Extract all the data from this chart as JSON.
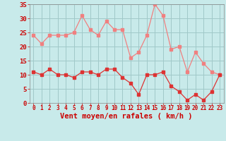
{
  "x": [
    0,
    1,
    2,
    3,
    4,
    5,
    6,
    7,
    8,
    9,
    10,
    11,
    12,
    13,
    14,
    15,
    16,
    17,
    18,
    19,
    20,
    21,
    22,
    23
  ],
  "vent_moyen": [
    11,
    10,
    12,
    10,
    10,
    9,
    11,
    11,
    10,
    12,
    12,
    9,
    7,
    3,
    10,
    10,
    11,
    6,
    4,
    1,
    3,
    1,
    4,
    10
  ],
  "vent_rafales": [
    24,
    21,
    24,
    24,
    24,
    25,
    31,
    26,
    24,
    29,
    26,
    26,
    16,
    18,
    24,
    35,
    31,
    19,
    20,
    11,
    18,
    14,
    11,
    10
  ],
  "line_color_moyen": "#dd3333",
  "line_color_rafales": "#f08080",
  "bg_color": "#c8eaea",
  "grid_color": "#a0c8c8",
  "xlabel": "Vent moyen/en rafales ( km/h )",
  "xlabel_color": "#cc0000",
  "ytick_color": "#cc0000",
  "xtick_color": "#cc0000",
  "ylim": [
    0,
    35
  ],
  "yticks": [
    0,
    5,
    10,
    15,
    20,
    25,
    30,
    35
  ],
  "xlim": [
    -0.5,
    23.5
  ],
  "ytick_fontsize": 6.5,
  "xtick_fontsize": 5.5,
  "xlabel_fontsize": 7.5
}
